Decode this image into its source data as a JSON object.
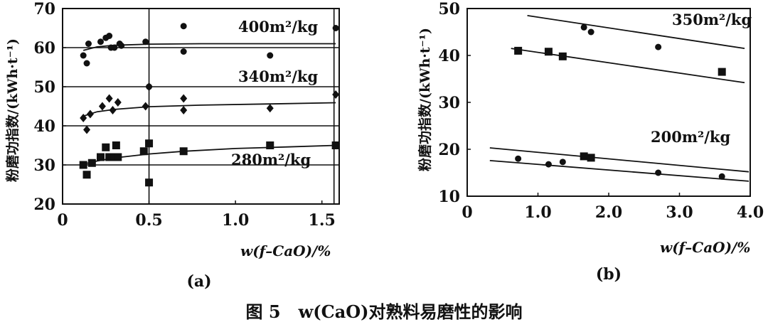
{
  "caption": "图 5   w(CaO)对熟料易磨性的影响",
  "chart_data": [
    {
      "type": "scatter",
      "panel_label": "(a)",
      "xlabel": "w(f–CaO)/%",
      "ylabel": "粉磨功指数/(kWh·t⁻¹)",
      "xlim": [
        0,
        1.6
      ],
      "ylim": [
        20,
        70
      ],
      "x_ticks": [
        "0",
        "0.5",
        "1.0",
        "1.5"
      ],
      "x_tick_values": [
        0,
        0.5,
        1.0,
        1.5
      ],
      "y_ticks": [
        "20",
        "30",
        "40",
        "50",
        "60",
        "70"
      ],
      "y_tick_values": [
        20,
        30,
        40,
        50,
        60,
        70
      ],
      "grid": {
        "horizontal": [
          30,
          40,
          50,
          60
        ],
        "vertical": [
          0.5,
          1.57
        ]
      },
      "series": [
        {
          "label": "400m²/kg",
          "marker": "circle",
          "points": [
            [
              0.12,
              58
            ],
            [
              0.14,
              56
            ],
            [
              0.15,
              61
            ],
            [
              0.22,
              61.5
            ],
            [
              0.25,
              62.5
            ],
            [
              0.27,
              63
            ],
            [
              0.28,
              60
            ],
            [
              0.3,
              60
            ],
            [
              0.33,
              61
            ],
            [
              0.34,
              60.5
            ],
            [
              0.48,
              61.5
            ],
            [
              0.5,
              50
            ],
            [
              0.7,
              65.5
            ],
            [
              0.7,
              59
            ],
            [
              1.2,
              58
            ],
            [
              1.58,
              65
            ]
          ],
          "fit": [
            [
              0.12,
              59.3
            ],
            [
              0.2,
              60.2
            ],
            [
              0.3,
              60.6
            ],
            [
              0.5,
              60.9
            ],
            [
              0.8,
              61.0
            ],
            [
              1.2,
              61.0
            ],
            [
              1.58,
              61.0
            ]
          ]
        },
        {
          "label": "340m²/kg",
          "marker": "diamond",
          "points": [
            [
              0.12,
              42
            ],
            [
              0.14,
              39
            ],
            [
              0.16,
              43
            ],
            [
              0.23,
              45
            ],
            [
              0.27,
              47
            ],
            [
              0.29,
              44
            ],
            [
              0.32,
              46
            ],
            [
              0.48,
              45
            ],
            [
              0.5,
              50
            ],
            [
              0.7,
              47
            ],
            [
              0.7,
              44
            ],
            [
              1.2,
              44.5
            ],
            [
              1.58,
              48
            ]
          ],
          "fit": [
            [
              0.12,
              42.5
            ],
            [
              0.2,
              43.6
            ],
            [
              0.3,
              44.2
            ],
            [
              0.5,
              44.9
            ],
            [
              0.8,
              45.3
            ],
            [
              1.2,
              45.6
            ],
            [
              1.58,
              45.9
            ]
          ]
        },
        {
          "label": "280m²/kg",
          "marker": "square",
          "points": [
            [
              0.12,
              30
            ],
            [
              0.14,
              27.5
            ],
            [
              0.17,
              30.5
            ],
            [
              0.22,
              32
            ],
            [
              0.25,
              34.5
            ],
            [
              0.27,
              32
            ],
            [
              0.3,
              32
            ],
            [
              0.31,
              35
            ],
            [
              0.32,
              32
            ],
            [
              0.47,
              33.5
            ],
            [
              0.5,
              35.5
            ],
            [
              0.5,
              25.5
            ],
            [
              0.7,
              33.5
            ],
            [
              1.2,
              35
            ],
            [
              1.58,
              35
            ]
          ],
          "fit": [
            [
              0.12,
              30.2
            ],
            [
              0.2,
              31.0
            ],
            [
              0.3,
              31.8
            ],
            [
              0.5,
              32.8
            ],
            [
              0.7,
              33.5
            ],
            [
              1.0,
              34.2
            ],
            [
              1.3,
              34.6
            ],
            [
              1.58,
              35.0
            ]
          ]
        }
      ]
    },
    {
      "type": "scatter",
      "panel_label": "(b)",
      "xlabel": "w(f–CaO)/%",
      "ylabel": "粉磨功指数/(kWh·t⁻¹)",
      "xlim": [
        0,
        4.0
      ],
      "ylim": [
        10,
        50
      ],
      "x_ticks": [
        "0",
        "1.0",
        "2.0",
        "3.0",
        "4.0"
      ],
      "x_tick_values": [
        0,
        1.0,
        2.0,
        3.0,
        4.0
      ],
      "y_ticks": [
        "10",
        "20",
        "30",
        "40",
        "50"
      ],
      "y_tick_values": [
        10,
        20,
        30,
        40,
        50
      ],
      "grid": {
        "horizontal": [],
        "vertical": []
      },
      "series": [
        {
          "label": "350m²/kg",
          "marker": "mixed",
          "points": [
            [
              0.72,
              41,
              "square"
            ],
            [
              1.15,
              40.8,
              "square"
            ],
            [
              1.35,
              39.8,
              "square"
            ],
            [
              1.65,
              46,
              "circle"
            ],
            [
              1.75,
              45,
              "circle"
            ],
            [
              2.7,
              41.8,
              "circle"
            ],
            [
              3.6,
              36.5,
              "square"
            ]
          ],
          "fit_lines": [
            [
              [
                0.85,
                48.5
              ],
              [
                3.92,
                41.5
              ]
            ],
            [
              [
                0.62,
                41.5
              ],
              [
                3.92,
                34.2
              ]
            ]
          ]
        },
        {
          "label": "200m²/kg",
          "marker": "mixed",
          "points": [
            [
              0.72,
              18,
              "circle"
            ],
            [
              1.15,
              16.8,
              "circle"
            ],
            [
              1.35,
              17.3,
              "circle"
            ],
            [
              1.65,
              18.5,
              "square"
            ],
            [
              1.75,
              18.2,
              "square"
            ],
            [
              2.7,
              15,
              "circle"
            ],
            [
              3.6,
              14.2,
              "circle"
            ]
          ],
          "fit_lines": [
            [
              [
                0.32,
                20.3
              ],
              [
                3.98,
                15.2
              ]
            ],
            [
              [
                0.32,
                17.6
              ],
              [
                3.98,
                13.2
              ]
            ]
          ]
        }
      ]
    }
  ]
}
